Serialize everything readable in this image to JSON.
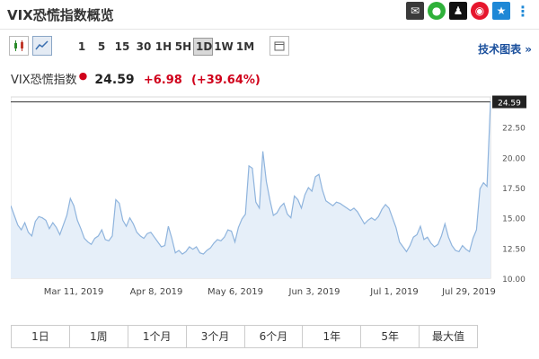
{
  "header": {
    "title": "VIX恐慌指数概览",
    "share_icons": [
      "mail-icon",
      "wechat-icon",
      "qq-icon",
      "weibo-icon",
      "star-icon",
      "more-icon"
    ]
  },
  "toolbar": {
    "intervals": [
      "1",
      "5",
      "15",
      "30",
      "1H",
      "5H",
      "1D",
      "1W",
      "1M"
    ],
    "active_interval": "1D",
    "tech_chart_label": "技术图表 »"
  },
  "quote": {
    "name": "VIX恐慌指数",
    "price": "24.59",
    "change": "+6.98",
    "change_pct": "(+39.64%)"
  },
  "chart_data": {
    "type": "area",
    "x_ticks": [
      "Mar 11, 2019",
      "Apr 8, 2019",
      "May 6, 2019",
      "Jun 3, 2019",
      "Jul 1, 2019",
      "Jul 29, 2019"
    ],
    "y_ticks": [
      "10.00",
      "12.50",
      "15.00",
      "17.50",
      "20.00",
      "22.50"
    ],
    "ylim": [
      10,
      25
    ],
    "last_value_label": "24.59",
    "values": [
      16.0,
      15.2,
      14.4,
      14.0,
      14.6,
      13.8,
      13.5,
      14.7,
      15.1,
      15.0,
      14.8,
      14.1,
      14.6,
      14.2,
      13.6,
      14.4,
      15.2,
      16.6,
      16.0,
      14.8,
      14.1,
      13.3,
      13.0,
      12.8,
      13.3,
      13.5,
      14.0,
      13.2,
      13.1,
      13.5,
      16.5,
      16.2,
      14.8,
      14.3,
      15.0,
      14.5,
      13.8,
      13.5,
      13.3,
      13.7,
      13.8,
      13.4,
      13.0,
      12.6,
      12.7,
      14.3,
      13.3,
      12.1,
      12.3,
      12.0,
      12.2,
      12.6,
      12.4,
      12.6,
      12.1,
      12.0,
      12.3,
      12.5,
      12.9,
      13.2,
      13.1,
      13.4,
      14.0,
      13.9,
      13.0,
      14.2,
      14.9,
      15.3,
      19.3,
      19.1,
      16.3,
      15.8,
      20.5,
      18.0,
      16.5,
      15.2,
      15.4,
      15.9,
      16.2,
      15.3,
      15.0,
      16.8,
      16.5,
      15.8,
      16.9,
      17.5,
      17.2,
      18.4,
      18.6,
      17.3,
      16.4,
      16.2,
      16.0,
      16.3,
      16.2,
      16.0,
      15.8,
      15.6,
      15.8,
      15.5,
      15.0,
      14.5,
      14.8,
      15.0,
      14.8,
      15.1,
      15.7,
      16.1,
      15.8,
      15.0,
      14.2,
      13.0,
      12.6,
      12.2,
      12.7,
      13.4,
      13.6,
      14.3,
      13.2,
      13.4,
      12.9,
      12.6,
      12.8,
      13.5,
      14.5,
      13.4,
      12.7,
      12.3,
      12.2,
      12.7,
      12.4,
      12.2,
      13.3,
      14.0,
      17.4,
      17.9,
      17.6,
      24.59
    ]
  },
  "ranges": [
    "1日",
    "1周",
    "1个月",
    "3个月",
    "6个月",
    "1年",
    "5年",
    "最大值"
  ],
  "colors": {
    "accent": "#1a4f9c",
    "down": "#d0021b",
    "line": "#8fb4dd",
    "fill": "#e6eff9"
  }
}
